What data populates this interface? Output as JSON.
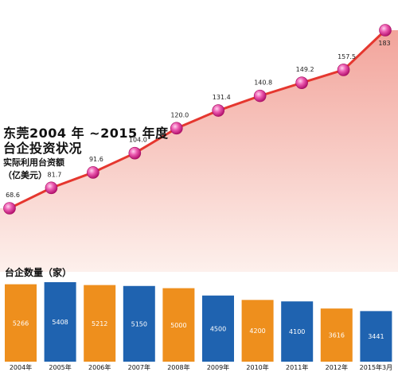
{
  "title_line1": "东莞2004 年 ~2015 年度",
  "title_line2": "台企投资状况",
  "chart_data": [
    {
      "type": "line",
      "title": "实际利用台资额",
      "unit": "（亿美元）",
      "categories": [
        "2004年",
        "2005年",
        "2006年",
        "2007年",
        "2008年",
        "2009年",
        "2010年",
        "2011年",
        "2012年",
        "2015年3月"
      ],
      "values": [
        68.6,
        81.7,
        91.6,
        104.0,
        120.0,
        131.4,
        140.8,
        149.2,
        157.5,
        183
      ],
      "labels": [
        "68.6",
        "81.7",
        "91.6",
        "104.0",
        "120.0",
        "131.4",
        "140.8",
        "149.2",
        "157.5",
        "183"
      ],
      "colors": {
        "line": "#e5372f",
        "marker": "#e83e9a",
        "area_top": "#f2a49b",
        "area_bottom": "#fdf0ec"
      }
    },
    {
      "type": "bar",
      "title": "台企数量（家）",
      "categories": [
        "2004年",
        "2005年",
        "2006年",
        "2007年",
        "2008年",
        "2009年",
        "2010年",
        "2011年",
        "2012年",
        "2015年3月"
      ],
      "values": [
        5266,
        5408,
        5212,
        5150,
        5000,
        4500,
        4200,
        4100,
        3616,
        3441
      ],
      "labels": [
        "5266",
        "5408",
        "5212",
        "5150",
        "5000",
        "4500",
        "4200",
        "4100",
        "3616",
        "3441"
      ],
      "colors": {
        "odd": "#ee8f1d",
        "even": "#1f63b0"
      }
    }
  ]
}
